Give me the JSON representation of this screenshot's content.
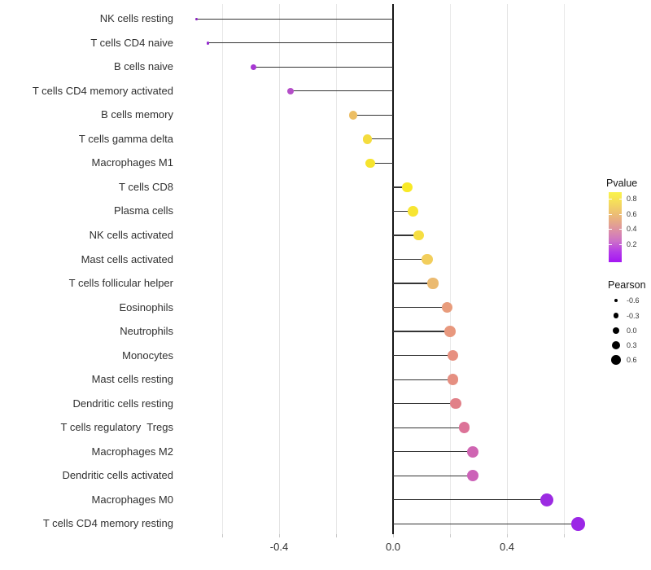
{
  "chart_data": {
    "type": "scatter",
    "subtype": "lollipop",
    "title": "",
    "xlabel": "",
    "ylabel": "",
    "xlim": [
      -0.72,
      0.69
    ],
    "grid": "vertical-only",
    "x_gridline_values": [
      -0.6,
      -0.4,
      -0.2,
      0.0,
      0.2,
      0.4,
      0.6
    ],
    "x_axis_ticks": [
      {
        "label": "-0.4",
        "value": -0.4
      },
      {
        "label": "0.0",
        "value": 0.0
      },
      {
        "label": "0.4",
        "value": 0.4
      }
    ],
    "zero_line_value": 0.0,
    "rows": [
      {
        "label": "NK cells resting",
        "pearson": -0.69,
        "color": "#8a24be"
      },
      {
        "label": "T cells CD4 naive",
        "pearson": -0.65,
        "color": "#9327ce"
      },
      {
        "label": "B cells naive",
        "pearson": -0.49,
        "color": "#a637d2"
      },
      {
        "label": "T cells CD4 memory activated",
        "pearson": -0.36,
        "color": "#b44ec8"
      },
      {
        "label": "B cells memory",
        "pearson": -0.14,
        "color": "#ecbe64"
      },
      {
        "label": "T cells gamma delta",
        "pearson": -0.09,
        "color": "#f4dc3e"
      },
      {
        "label": "Macrophages M1",
        "pearson": -0.08,
        "color": "#f6e42d"
      },
      {
        "label": "T cells CD8",
        "pearson": 0.05,
        "color": "#f8e926"
      },
      {
        "label": "Plasma cells",
        "pearson": 0.07,
        "color": "#f7e532"
      },
      {
        "label": "NK cells activated",
        "pearson": 0.09,
        "color": "#f6de42"
      },
      {
        "label": "Mast cells activated",
        "pearson": 0.12,
        "color": "#f2ce5c"
      },
      {
        "label": "T cells follicular helper",
        "pearson": 0.14,
        "color": "#ebba70"
      },
      {
        "label": "Eosinophils",
        "pearson": 0.19,
        "color": "#e89c7c"
      },
      {
        "label": "Neutrophils",
        "pearson": 0.2,
        "color": "#e8987e"
      },
      {
        "label": "Monocytes",
        "pearson": 0.21,
        "color": "#e79080"
      },
      {
        "label": "Mast cells resting",
        "pearson": 0.21,
        "color": "#e58f81"
      },
      {
        "label": "Dendritic cells resting",
        "pearson": 0.22,
        "color": "#e18088"
      },
      {
        "label": "T cells regulatory  Tregs",
        "pearson": 0.25,
        "color": "#dc7398"
      },
      {
        "label": "Macrophages M2",
        "pearson": 0.28,
        "color": "#cf65b2"
      },
      {
        "label": "Dendritic cells activated",
        "pearson": 0.28,
        "color": "#cc62b8"
      },
      {
        "label": "Macrophages M0",
        "pearson": 0.54,
        "color": "#9c2be2"
      },
      {
        "label": "T cells CD4 memory resting",
        "pearson": 0.65,
        "color": "#9b27e6"
      }
    ],
    "legend_position": "right",
    "color_legend": {
      "title": "Pvalue",
      "tick_labels": [
        "0.8",
        "0.6",
        "0.4",
        "0.2"
      ],
      "gradient_stops": [
        {
          "at": 0.0,
          "color": "#faf34b"
        },
        {
          "at": 0.1,
          "color": "#f7e455"
        },
        {
          "at": 0.25,
          "color": "#f0c96b"
        },
        {
          "at": 0.4,
          "color": "#e7ad83"
        },
        {
          "at": 0.55,
          "color": "#dc8fa6"
        },
        {
          "at": 0.7,
          "color": "#cc70c8"
        },
        {
          "at": 0.85,
          "color": "#b53be8"
        },
        {
          "at": 1.0,
          "color": "#a416f2"
        }
      ]
    },
    "size_legend": {
      "title": "Pearson",
      "entries": [
        {
          "label": "-0.6",
          "value": -0.6
        },
        {
          "label": "-0.3",
          "value": -0.3
        },
        {
          "label": "0.0",
          "value": 0.0
        },
        {
          "label": "0.3",
          "value": 0.3
        },
        {
          "label": "0.6",
          "value": 0.6
        }
      ],
      "dot_color": "#000000"
    }
  }
}
